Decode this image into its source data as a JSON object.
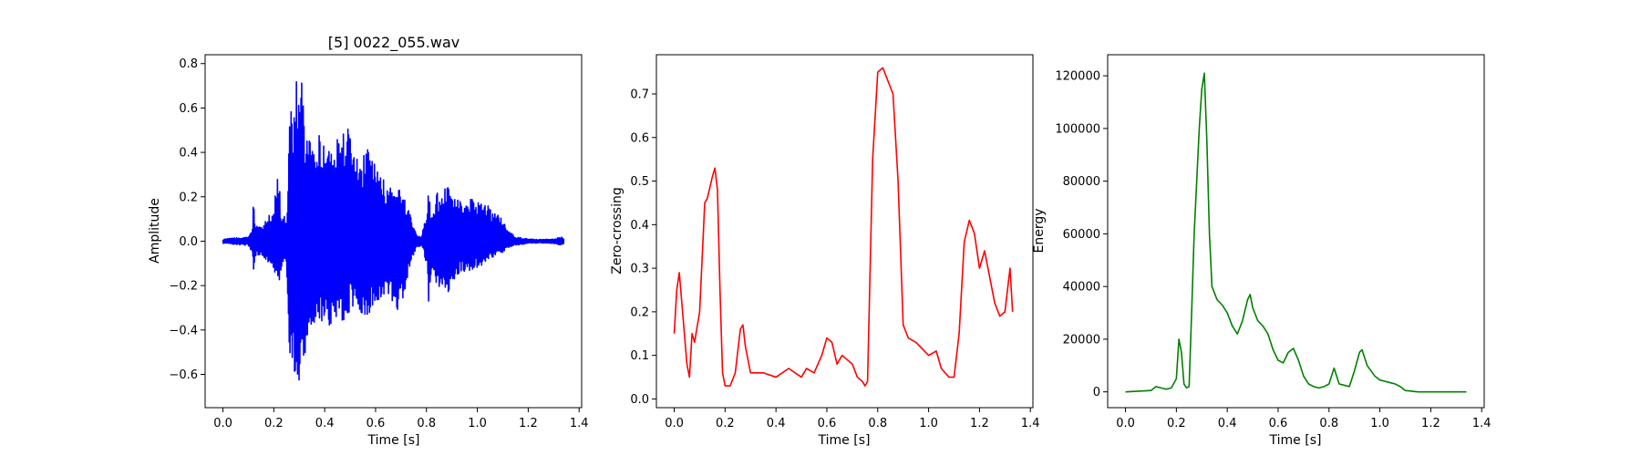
{
  "figure": {
    "background": "#ffffff"
  },
  "chart_data": [
    {
      "type": "line",
      "title": "[5] 0022_055.wav",
      "xlabel": "Time [s]",
      "ylabel": "Amplitude",
      "xlim": [
        -0.07,
        1.41
      ],
      "ylim": [
        -0.75,
        0.84
      ],
      "xticks": [
        0.0,
        0.2,
        0.4,
        0.6,
        0.8,
        1.0,
        1.2,
        1.4
      ],
      "xtick_labels": [
        "0.0",
        "0.2",
        "0.4",
        "0.6",
        "0.8",
        "1.0",
        "1.2",
        "1.4"
      ],
      "yticks": [
        -0.6,
        -0.4,
        -0.2,
        0.0,
        0.2,
        0.4,
        0.6,
        0.8
      ],
      "ytick_labels": [
        "−0.6",
        "−0.4",
        "−0.2",
        "0.0",
        "0.2",
        "0.4",
        "0.6",
        "0.8"
      ],
      "grid": false,
      "color": "#0000ff",
      "series": [
        {
          "x": [
            0.0,
            0.05,
            0.1,
            0.115,
            0.12,
            0.125,
            0.15,
            0.2,
            0.21,
            0.22,
            0.23,
            0.24,
            0.25,
            0.26,
            0.27,
            0.28,
            0.3,
            0.31,
            0.32,
            0.33,
            0.35,
            0.38,
            0.4,
            0.42,
            0.45,
            0.48,
            0.5,
            0.52,
            0.55,
            0.58,
            0.6,
            0.62,
            0.65,
            0.68,
            0.7,
            0.72,
            0.74,
            0.76,
            0.78,
            0.8,
            0.81,
            0.82,
            0.84,
            0.86,
            0.88,
            0.9,
            0.92,
            0.95,
            0.98,
            1.0,
            1.03,
            1.05,
            1.08,
            1.1,
            1.12,
            1.15,
            1.2,
            1.25,
            1.3,
            1.33,
            1.34
          ],
          "upper": [
            0.01,
            0.015,
            0.02,
            0.05,
            0.2,
            0.08,
            0.06,
            0.15,
            0.28,
            0.3,
            0.1,
            0.12,
            0.08,
            0.55,
            0.6,
            0.7,
            0.76,
            0.72,
            0.62,
            0.52,
            0.45,
            0.48,
            0.42,
            0.5,
            0.48,
            0.52,
            0.54,
            0.45,
            0.4,
            0.43,
            0.35,
            0.3,
            0.25,
            0.22,
            0.25,
            0.2,
            0.1,
            0.03,
            0.02,
            0.12,
            0.25,
            0.1,
            0.22,
            0.2,
            0.27,
            0.22,
            0.19,
            0.17,
            0.2,
            0.18,
            0.19,
            0.15,
            0.12,
            0.1,
            0.05,
            0.02,
            0.01,
            0.008,
            0.01,
            0.02,
            0.01
          ],
          "lower": [
            -0.01,
            -0.015,
            -0.02,
            -0.05,
            -0.18,
            -0.08,
            -0.06,
            -0.12,
            -0.2,
            -0.25,
            -0.12,
            -0.1,
            -0.1,
            -0.64,
            -0.55,
            -0.62,
            -0.68,
            -0.6,
            -0.55,
            -0.48,
            -0.45,
            -0.35,
            -0.38,
            -0.4,
            -0.35,
            -0.37,
            -0.33,
            -0.3,
            -0.35,
            -0.32,
            -0.3,
            -0.28,
            -0.28,
            -0.32,
            -0.3,
            -0.22,
            -0.1,
            -0.03,
            -0.02,
            -0.1,
            -0.3,
            -0.12,
            -0.2,
            -0.22,
            -0.25,
            -0.2,
            -0.15,
            -0.14,
            -0.13,
            -0.12,
            -0.11,
            -0.08,
            -0.06,
            -0.05,
            -0.03,
            -0.02,
            -0.01,
            -0.008,
            -0.01,
            -0.02,
            -0.01
          ]
        }
      ]
    },
    {
      "type": "line",
      "title": "",
      "xlabel": "Time [s]",
      "ylabel": "Zero-crossing",
      "xlim": [
        -0.07,
        1.41
      ],
      "ylim": [
        -0.02,
        0.79
      ],
      "xticks": [
        0.0,
        0.2,
        0.4,
        0.6,
        0.8,
        1.0,
        1.2,
        1.4
      ],
      "xtick_labels": [
        "0.0",
        "0.2",
        "0.4",
        "0.6",
        "0.8",
        "1.0",
        "1.2",
        "1.4"
      ],
      "yticks": [
        0.0,
        0.1,
        0.2,
        0.3,
        0.4,
        0.5,
        0.6,
        0.7
      ],
      "ytick_labels": [
        "0.0",
        "0.1",
        "0.2",
        "0.3",
        "0.4",
        "0.5",
        "0.6",
        "0.7"
      ],
      "grid": false,
      "color": "#ff0000",
      "series": [
        {
          "x": [
            0.0,
            0.01,
            0.02,
            0.03,
            0.05,
            0.06,
            0.07,
            0.08,
            0.1,
            0.12,
            0.13,
            0.15,
            0.16,
            0.17,
            0.18,
            0.19,
            0.2,
            0.22,
            0.24,
            0.26,
            0.27,
            0.28,
            0.3,
            0.35,
            0.4,
            0.45,
            0.5,
            0.52,
            0.55,
            0.58,
            0.6,
            0.62,
            0.64,
            0.66,
            0.68,
            0.7,
            0.72,
            0.74,
            0.75,
            0.76,
            0.78,
            0.8,
            0.82,
            0.84,
            0.86,
            0.88,
            0.9,
            0.92,
            0.95,
            1.0,
            1.03,
            1.05,
            1.08,
            1.1,
            1.12,
            1.14,
            1.16,
            1.18,
            1.2,
            1.22,
            1.24,
            1.26,
            1.28,
            1.3,
            1.31,
            1.32,
            1.33
          ],
          "y": [
            0.15,
            0.25,
            0.29,
            0.22,
            0.08,
            0.05,
            0.15,
            0.13,
            0.2,
            0.45,
            0.46,
            0.51,
            0.53,
            0.48,
            0.25,
            0.06,
            0.03,
            0.03,
            0.06,
            0.16,
            0.17,
            0.12,
            0.06,
            0.06,
            0.05,
            0.07,
            0.05,
            0.07,
            0.06,
            0.1,
            0.14,
            0.13,
            0.08,
            0.1,
            0.09,
            0.08,
            0.05,
            0.04,
            0.03,
            0.04,
            0.55,
            0.75,
            0.76,
            0.73,
            0.7,
            0.5,
            0.17,
            0.14,
            0.13,
            0.1,
            0.11,
            0.07,
            0.05,
            0.05,
            0.15,
            0.36,
            0.41,
            0.38,
            0.3,
            0.34,
            0.28,
            0.22,
            0.19,
            0.2,
            0.25,
            0.3,
            0.2
          ]
        }
      ]
    },
    {
      "type": "line",
      "title": "",
      "xlabel": "Time [s]",
      "ylabel": "Energy",
      "xlim": [
        -0.07,
        1.41
      ],
      "ylim": [
        -6000,
        128000
      ],
      "xticks": [
        0.0,
        0.2,
        0.4,
        0.6,
        0.8,
        1.0,
        1.2,
        1.4
      ],
      "xtick_labels": [
        "0.0",
        "0.2",
        "0.4",
        "0.6",
        "0.8",
        "1.0",
        "1.2",
        "1.4"
      ],
      "yticks": [
        0,
        20000,
        40000,
        60000,
        80000,
        100000,
        120000
      ],
      "ytick_labels": [
        "0",
        "20000",
        "40000",
        "60000",
        "80000",
        "100000",
        "120000"
      ],
      "grid": false,
      "color": "#008000",
      "series": [
        {
          "x": [
            0.0,
            0.1,
            0.12,
            0.14,
            0.16,
            0.18,
            0.2,
            0.21,
            0.22,
            0.23,
            0.24,
            0.25,
            0.26,
            0.27,
            0.28,
            0.29,
            0.3,
            0.31,
            0.32,
            0.33,
            0.34,
            0.36,
            0.38,
            0.4,
            0.42,
            0.44,
            0.46,
            0.48,
            0.49,
            0.5,
            0.52,
            0.54,
            0.56,
            0.58,
            0.6,
            0.62,
            0.64,
            0.66,
            0.68,
            0.7,
            0.72,
            0.74,
            0.76,
            0.78,
            0.8,
            0.82,
            0.83,
            0.84,
            0.86,
            0.88,
            0.9,
            0.92,
            0.93,
            0.95,
            0.98,
            1.0,
            1.02,
            1.04,
            1.06,
            1.08,
            1.1,
            1.15,
            1.2,
            1.3,
            1.34
          ],
          "y": [
            0,
            500,
            2000,
            1500,
            1000,
            1500,
            5000,
            20000,
            15000,
            3000,
            1500,
            2000,
            30000,
            60000,
            80000,
            100000,
            115000,
            121000,
            95000,
            60000,
            40000,
            35000,
            33000,
            30000,
            25000,
            22000,
            27000,
            35000,
            37000,
            32000,
            27000,
            25000,
            22000,
            16000,
            12000,
            11000,
            15000,
            16500,
            12000,
            6000,
            3000,
            2000,
            1500,
            2000,
            3000,
            9000,
            6000,
            3000,
            2500,
            2000,
            8000,
            15000,
            16000,
            10000,
            6000,
            4500,
            4000,
            3500,
            3000,
            2000,
            500,
            0,
            0,
            0,
            0
          ]
        }
      ]
    }
  ]
}
